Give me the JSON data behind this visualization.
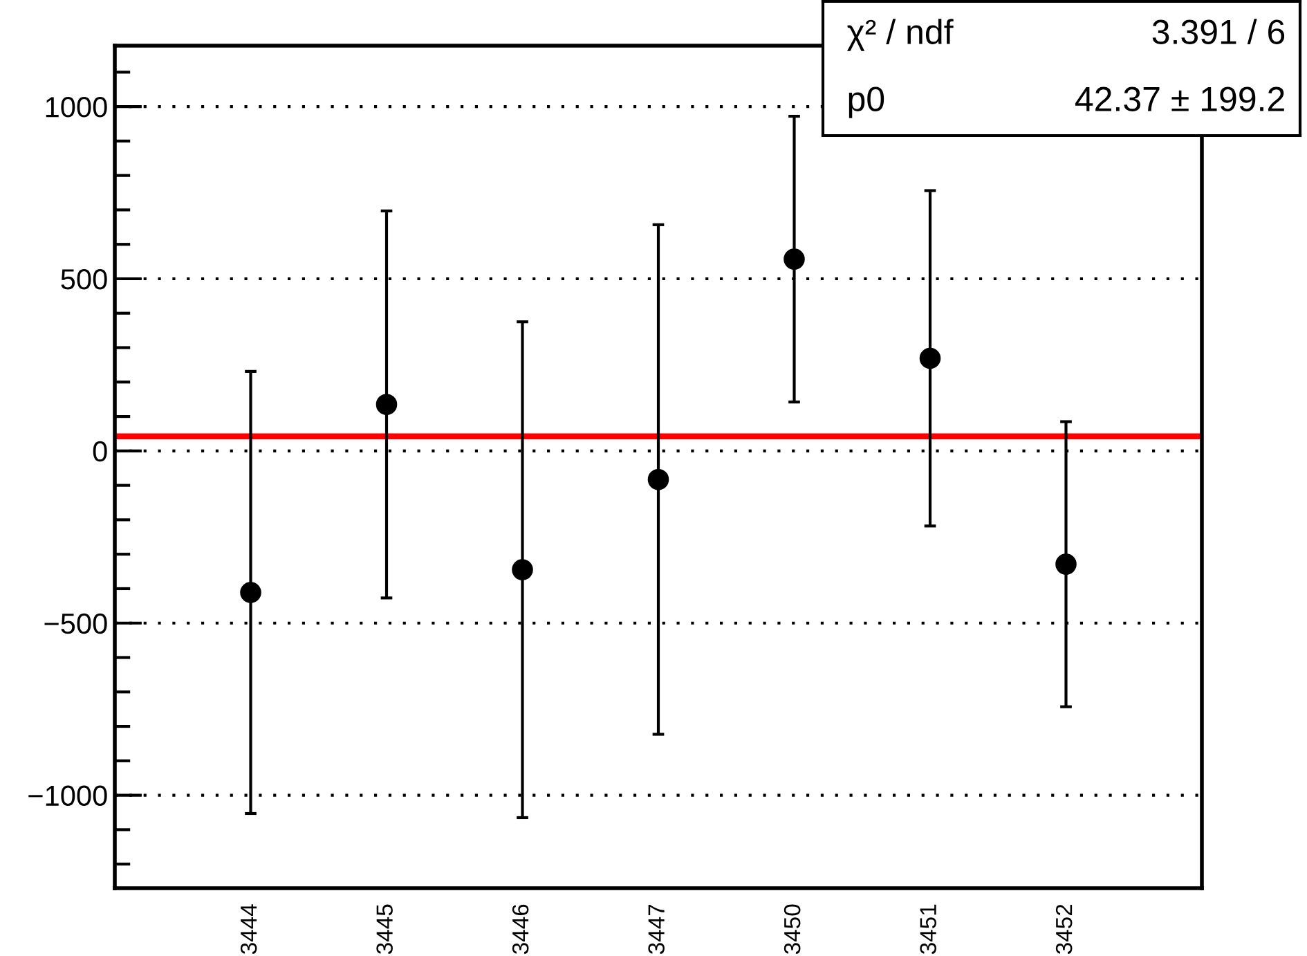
{
  "chart_data": {
    "type": "scatter",
    "categories": [
      "3444",
      "3445",
      "3446",
      "3447",
      "3450",
      "3451",
      "3452"
    ],
    "series": [
      {
        "color": "#000000",
        "values": [
          -411,
          135,
          -345,
          -83,
          557,
          269,
          -329
        ],
        "errors": [
          642,
          562,
          720,
          740,
          415,
          487,
          414
        ]
      }
    ],
    "ylim": [
      -1270,
      1177
    ],
    "yticks": [
      {
        "value": -1000,
        "label": "−1000"
      },
      {
        "value": -500,
        "label": "−500"
      },
      0,
      500,
      1000
    ],
    "grid": "y",
    "marker": "circle",
    "ref_lines": [
      {
        "axis": "y",
        "value": 42.37,
        "color": "#ff0000",
        "line_style": "solid"
      }
    ],
    "annotations": [
      "χ² / ndf",
      "3.391 / 6",
      "p0",
      "42.37 ± 199.2"
    ]
  }
}
